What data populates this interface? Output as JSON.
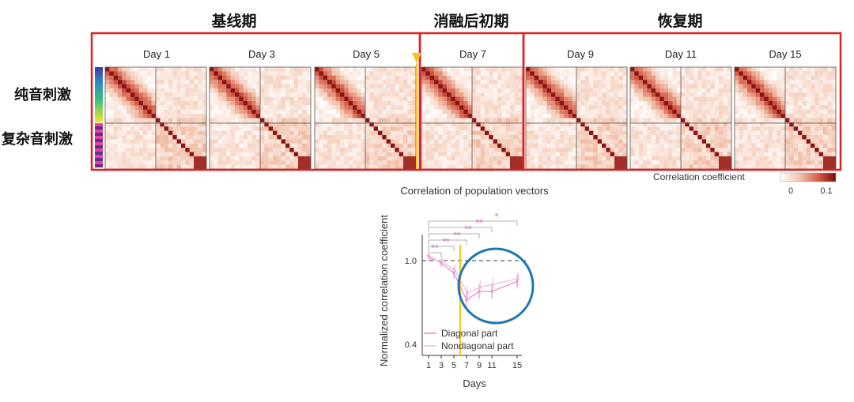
{
  "phase_titles": [
    "基线期",
    "消融后初期",
    "恢复期"
  ],
  "stimulus_labels": [
    "纯音刺激",
    "复杂音刺激"
  ],
  "days": [
    "Day 1",
    "Day 3",
    "Day 5",
    "Day 7",
    "Day 9",
    "Day 11",
    "Day 15"
  ],
  "colorbar": {
    "label": "Correlation coefficient",
    "ticks": [
      "0",
      "0.1"
    ],
    "colors": [
      "#ffffff",
      "#f3c3ad",
      "#d45a44",
      "#7a0a10"
    ]
  },
  "colors": {
    "highlight_box": "#e02020",
    "ablation_marker": "#f5c518",
    "circle": "#1f77b4",
    "diagonal_line": "#e888c8",
    "nondiagonal_line": "#f2b8e0",
    "sig_star": "#e39ad6"
  },
  "chart_data": [
    {
      "type": "heatmap",
      "description_panels": [
        "Day 1",
        "Day 3",
        "Day 5",
        "Day 7",
        "Day 9",
        "Day 11",
        "Day 15"
      ],
      "legend": "Correlation coefficient",
      "zlim": [
        0,
        0.1
      ]
    },
    {
      "type": "line",
      "title": "Correlation of population vectors",
      "xlabel": "Days",
      "ylabel": "Normalized correlation coefficient",
      "x": [
        1,
        3,
        5,
        7,
        9,
        11,
        15
      ],
      "xticks": [
        "1",
        "3",
        "5",
        "7",
        "9",
        "11",
        "15"
      ],
      "yticks": [
        "1.0",
        "0.4"
      ],
      "ylim": [
        0.35,
        1.2
      ],
      "reference_line_y": 1.0,
      "series": [
        {
          "name": "Diagonal part",
          "values": [
            1.05,
            1.0,
            0.93,
            0.74,
            0.8,
            0.8,
            0.87
          ],
          "err": [
            0.03,
            0.03,
            0.04,
            0.06,
            0.05,
            0.05,
            0.05
          ]
        },
        {
          "name": "Nondiagonal part",
          "values": [
            1.03,
            1.01,
            0.95,
            0.79,
            0.83,
            0.85,
            0.89
          ],
          "err": [
            0.03,
            0.03,
            0.04,
            0.05,
            0.05,
            0.05,
            0.05
          ]
        }
      ],
      "significance": [
        "**",
        "**",
        "**",
        "**",
        "**",
        "*"
      ],
      "legend_position": "bottom-left"
    }
  ]
}
